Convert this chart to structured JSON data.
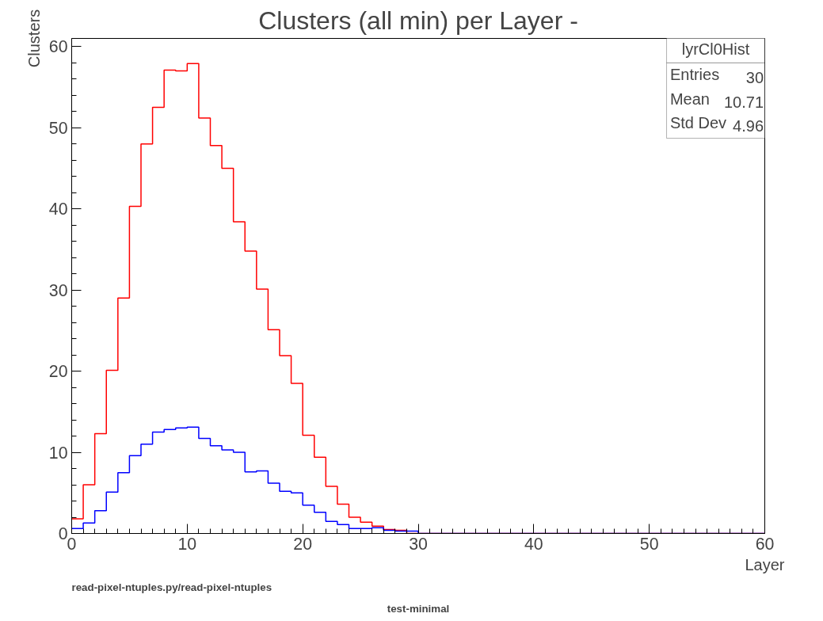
{
  "chart_data": {
    "type": "histogram",
    "title": "Clusters (all min) per Layer -",
    "xlabel": "Layer",
    "ylabel": "Clusters",
    "bins": [
      0,
      1,
      2,
      3,
      4,
      5,
      6,
      7,
      8,
      9,
      10,
      11,
      12,
      13,
      14,
      15,
      16,
      17,
      18,
      19,
      20,
      21,
      22,
      23,
      24,
      25,
      26,
      27,
      28,
      29,
      30,
      31,
      32,
      33,
      34,
      35,
      36,
      37,
      38,
      39,
      40,
      41,
      42,
      43,
      44,
      45,
      46,
      47,
      48,
      49,
      50,
      51,
      52,
      53,
      54,
      55,
      56,
      57,
      58,
      59,
      60
    ],
    "series": [
      {
        "color": "#ff0000",
        "values": [
          1.8,
          6,
          12.3,
          20.1,
          29,
          40.3,
          48,
          52.5,
          57.1,
          57,
          57.9,
          51.2,
          47.8,
          45,
          38.4,
          34.8,
          30.1,
          25.1,
          21.9,
          18.5,
          12.1,
          9.4,
          5.8,
          3.6,
          2,
          1.4,
          0.9,
          0.5,
          0.4,
          0,
          0,
          0,
          0,
          0,
          0,
          0,
          0,
          0,
          0,
          0,
          0,
          0,
          0,
          0,
          0,
          0,
          0,
          0,
          0,
          0,
          0,
          0,
          0,
          0,
          0,
          0,
          0,
          0,
          0,
          0
        ]
      },
      {
        "color": "#0000ff",
        "values": [
          0.6,
          1.3,
          2.8,
          5.1,
          7.5,
          9.6,
          11,
          12.5,
          12.8,
          13,
          13.1,
          11.7,
          10.8,
          10.3,
          10,
          7.6,
          7.7,
          6.2,
          5.2,
          5,
          3.5,
          2.6,
          1.5,
          1.1,
          0.6,
          0.6,
          0.7,
          0.4,
          0.3,
          0.3,
          0,
          0,
          0,
          0,
          0,
          0,
          0,
          0,
          0,
          0,
          0,
          0,
          0,
          0,
          0,
          0,
          0,
          0,
          0,
          0,
          0,
          0,
          0,
          0,
          0,
          0,
          0,
          0,
          0,
          0
        ]
      }
    ],
    "xlim": [
      0,
      60
    ],
    "ylim": [
      0,
      61
    ],
    "xticks": [
      0,
      10,
      20,
      30,
      40,
      50,
      60
    ],
    "yticks": [
      0,
      10,
      20,
      30,
      40,
      50,
      60
    ],
    "grid": false,
    "annotations": [
      "lyrCl0Hist",
      "Entries",
      "30",
      "Mean",
      "10.71",
      "Std Dev",
      "4.96",
      "read-pixel-ntuples.py/read-pixel-ntuples",
      "test-minimal"
    ]
  }
}
